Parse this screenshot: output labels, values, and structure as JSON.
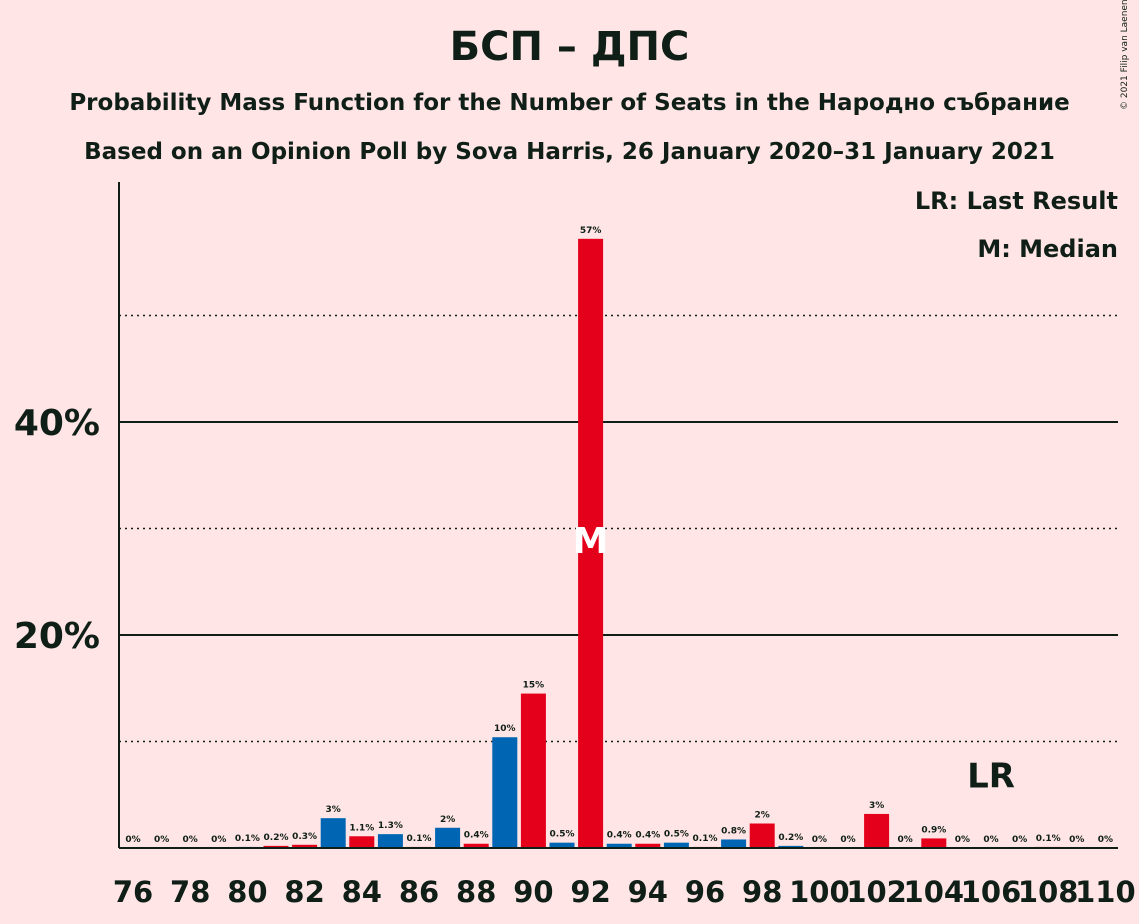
{
  "title": "БСП – ДПС",
  "subtitle": "Probability Mass Function for the Number of Seats in the Народно събрание",
  "subtitle2": "Based on an Opinion Poll by Sova Harris, 26 January 2020–31 January 2021",
  "copyright": "© 2021 Filip van Laenen",
  "legend": {
    "lr": "LR: Last Result",
    "m": "M: Median"
  },
  "markers": {
    "median_label": "M",
    "last_result_label": "LR"
  },
  "colors": {
    "background": "#FFE5E5",
    "bsp": "#E4001B",
    "dps": "#0066B3",
    "text": "#0F1F17",
    "median_marker": "#FFFFFF"
  },
  "chart_data": {
    "type": "bar",
    "title": "БСП – ДПС",
    "xlabel": "",
    "ylabel": "",
    "ylim": [
      0,
      62
    ],
    "y_ticks": [
      20,
      40
    ],
    "y_tick_labels": [
      "20%",
      "40%"
    ],
    "y_dotted_gridlines": [
      10,
      30,
      50
    ],
    "x_tick_labels": [
      "76",
      "78",
      "80",
      "82",
      "84",
      "86",
      "88",
      "90",
      "92",
      "94",
      "96",
      "98",
      "100",
      "102",
      "104",
      "106",
      "108",
      "110"
    ],
    "median_seat": 92,
    "median_percent": 29,
    "last_result_seat": 106,
    "last_result_percent": 7,
    "bars": [
      {
        "seat": 76,
        "value": 0,
        "label": "0%",
        "color": "#0066B3"
      },
      {
        "seat": 77,
        "value": 0,
        "label": "0%",
        "color": "#E4001B"
      },
      {
        "seat": 78,
        "value": 0,
        "label": "0%",
        "color": "#0066B3"
      },
      {
        "seat": 79,
        "value": 0,
        "label": "0%",
        "color": "#E4001B"
      },
      {
        "seat": 80,
        "value": 0.1,
        "label": "0.1%",
        "color": "#0066B3"
      },
      {
        "seat": 81,
        "value": 0.2,
        "label": "0.2%",
        "color": "#E4001B"
      },
      {
        "seat": 82,
        "value": 0.3,
        "label": "0.3%",
        "color": "#E4001B"
      },
      {
        "seat": 83,
        "value": 2.8,
        "label": "3%",
        "color": "#0066B3"
      },
      {
        "seat": 84,
        "value": 1.1,
        "label": "1.1%",
        "color": "#E4001B"
      },
      {
        "seat": 85,
        "value": 1.3,
        "label": "1.3%",
        "color": "#0066B3"
      },
      {
        "seat": 86,
        "value": 0.1,
        "label": "0.1%",
        "color": "#E4001B"
      },
      {
        "seat": 87,
        "value": 1.9,
        "label": "2%",
        "color": "#0066B3"
      },
      {
        "seat": 88,
        "value": 0.4,
        "label": "0.4%",
        "color": "#E4001B"
      },
      {
        "seat": 89,
        "value": 10.4,
        "label": "10%",
        "color": "#0066B3"
      },
      {
        "seat": 90,
        "value": 14.5,
        "label": "15%",
        "color": "#E4001B"
      },
      {
        "seat": 91,
        "value": 0.5,
        "label": "0.5%",
        "color": "#0066B3"
      },
      {
        "seat": 92,
        "value": 57.2,
        "label": "57%",
        "color": "#E4001B"
      },
      {
        "seat": 93,
        "value": 0.4,
        "label": "0.4%",
        "color": "#0066B3"
      },
      {
        "seat": 94,
        "value": 0.4,
        "label": "0.4%",
        "color": "#E4001B"
      },
      {
        "seat": 95,
        "value": 0.5,
        "label": "0.5%",
        "color": "#0066B3"
      },
      {
        "seat": 96,
        "value": 0.1,
        "label": "0.1%",
        "color": "#E4001B"
      },
      {
        "seat": 97,
        "value": 0.8,
        "label": "0.8%",
        "color": "#0066B3"
      },
      {
        "seat": 98,
        "value": 2.3,
        "label": "2%",
        "color": "#E4001B"
      },
      {
        "seat": 99,
        "value": 0.2,
        "label": "0.2%",
        "color": "#0066B3"
      },
      {
        "seat": 100,
        "value": 0,
        "label": "0%",
        "color": "#E4001B"
      },
      {
        "seat": 101,
        "value": 0,
        "label": "0%",
        "color": "#0066B3"
      },
      {
        "seat": 102,
        "value": 3.2,
        "label": "3%",
        "color": "#E4001B"
      },
      {
        "seat": 103,
        "value": 0,
        "label": "0%",
        "color": "#0066B3"
      },
      {
        "seat": 104,
        "value": 0.9,
        "label": "0.9%",
        "color": "#E4001B"
      },
      {
        "seat": 105,
        "value": 0,
        "label": "0%",
        "color": "#0066B3"
      },
      {
        "seat": 106,
        "value": 0,
        "label": "0%",
        "color": "#E4001B"
      },
      {
        "seat": 107,
        "value": 0,
        "label": "0%",
        "color": "#0066B3"
      },
      {
        "seat": 108,
        "value": 0.1,
        "label": "0.1%",
        "color": "#E4001B"
      },
      {
        "seat": 109,
        "value": 0,
        "label": "0%",
        "color": "#0066B3"
      },
      {
        "seat": 110,
        "value": 0,
        "label": "0%",
        "color": "#E4001B"
      }
    ]
  }
}
